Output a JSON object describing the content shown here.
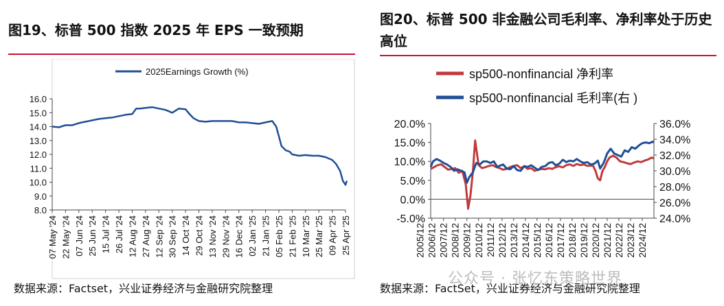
{
  "left": {
    "title": "图19、标普 500 指数 2025 年 EPS 一致预期",
    "source": "数据来源：Factset，兴业证券经济与金融研究院整理"
  },
  "right": {
    "title": "图20、标普 500 非金融公司毛利率、净利率处于历史高位",
    "source": "数据来源：FactSet，兴业证券经济与金融研究院整理"
  },
  "watermark": "公众号 · 张忆东策略世界",
  "colors": {
    "navy": "#1f4e96",
    "red": "#c0393b",
    "rule": "#c8102e"
  },
  "chart_data": [
    {
      "type": "line",
      "title": "",
      "ylim": [
        8.0,
        16.0
      ],
      "yticks": [
        "16.0",
        "15.0",
        "14.0",
        "13.0",
        "12.0",
        "11.0",
        "10.0",
        "9.0",
        "8.0"
      ],
      "xticks": [
        "07 May '24",
        "22 May '24",
        "07 Jun '24",
        "25 Jun '24",
        "15 Jul '24",
        "26 Jul '24",
        "12 Aug '24",
        "27 Aug '24",
        "12 Sep '24",
        "30 Sep '24",
        "14 Oct '24",
        "29 Oct '24",
        "13 Nov '24",
        "29 Nov '24",
        "16 Dec '24",
        "02 Jan '25",
        "21 Jan '25",
        "05 Feb '25",
        "21 Feb '25",
        "10 Mar '25",
        "25 Mar '25",
        "09 Apr '25",
        "25 Apr '25"
      ],
      "grid": false,
      "legend_position": "top",
      "series": [
        {
          "name": "2025Earnings Growth (%)",
          "color": "#1f4e96",
          "x": [
            0,
            0.5,
            1,
            1.5,
            2,
            2.5,
            3,
            3.5,
            4,
            4.5,
            5,
            5.5,
            6,
            6.3,
            6.6,
            7,
            7.5,
            8,
            8.5,
            9,
            9.5,
            10,
            10.3,
            10.6,
            11,
            11.5,
            12,
            12.5,
            13,
            13.5,
            14,
            14.5,
            15,
            15.5,
            16,
            16.5,
            16.8,
            17,
            17.2,
            17.5,
            17.8,
            18,
            18.5,
            19,
            19.5,
            20,
            20.5,
            21,
            21.3,
            21.6,
            21.8,
            22,
            22.1
          ],
          "values": [
            14.0,
            13.95,
            14.1,
            14.1,
            14.25,
            14.35,
            14.45,
            14.55,
            14.6,
            14.65,
            14.75,
            14.85,
            14.9,
            15.3,
            15.3,
            15.35,
            15.4,
            15.3,
            15.2,
            15.0,
            15.3,
            15.25,
            14.9,
            14.6,
            14.4,
            14.35,
            14.4,
            14.4,
            14.4,
            14.4,
            14.3,
            14.3,
            14.25,
            14.2,
            14.3,
            14.4,
            14.0,
            13.3,
            12.6,
            12.3,
            12.2,
            12.0,
            11.9,
            11.95,
            11.9,
            11.9,
            11.8,
            11.6,
            11.3,
            10.8,
            10.1,
            9.8,
            10.1
          ]
        }
      ]
    },
    {
      "type": "line",
      "title": "",
      "ylim": [
        -0.05,
        0.2
      ],
      "y2lim": [
        0.24,
        0.36
      ],
      "yticks": [
        "20.0%",
        "15.0%",
        "10.0%",
        "5.0%",
        "0.0%",
        "-5.0%"
      ],
      "y2ticks": [
        "36.0%",
        "34.0%",
        "32.0%",
        "30.0%",
        "28.0%",
        "26.0%",
        "24.0%"
      ],
      "xticks": [
        "2005/12",
        "2006/12",
        "2007/12",
        "2008/12",
        "2009/12",
        "2010/12",
        "2011/12",
        "2012/12",
        "2013/12",
        "2014/12",
        "2015/12",
        "2016/12",
        "2017/12",
        "2018/12",
        "2019/12",
        "2020/12",
        "2021/12",
        "2022/12",
        "2023/12",
        "2024/12"
      ],
      "grid": false,
      "legend_position": "top-left",
      "series": [
        {
          "name": "sp500-nonfinancial 净利率",
          "color": "#c0393b",
          "axis": "left",
          "x": [
            2005.9,
            2006.2,
            2006.5,
            2006.8,
            2007.1,
            2007.4,
            2007.7,
            2008.0,
            2008.3,
            2008.6,
            2008.9,
            2009.1,
            2009.3,
            2009.5,
            2009.7,
            2010.0,
            2010.3,
            2010.6,
            2010.9,
            2011.2,
            2011.5,
            2011.8,
            2012.1,
            2012.4,
            2012.7,
            2013.0,
            2013.3,
            2013.6,
            2013.9,
            2014.2,
            2014.5,
            2014.8,
            2015.1,
            2015.4,
            2015.7,
            2016.0,
            2016.3,
            2016.6,
            2016.9,
            2017.2,
            2017.5,
            2017.8,
            2018.1,
            2018.4,
            2018.7,
            2019.0,
            2019.3,
            2019.6,
            2019.8,
            2020.0,
            2020.2,
            2020.4,
            2020.6,
            2020.8,
            2021.0,
            2021.2,
            2021.5,
            2021.8,
            2022.1,
            2022.4,
            2022.7,
            2023.0,
            2023.3,
            2023.6,
            2023.9,
            2024.2,
            2024.5,
            2024.8,
            2025.0
          ],
          "values": [
            0.08,
            0.085,
            0.09,
            0.092,
            0.085,
            0.078,
            0.08,
            0.082,
            0.07,
            0.075,
            0.04,
            -0.025,
            0.01,
            0.07,
            0.155,
            0.09,
            0.082,
            0.085,
            0.088,
            0.09,
            0.085,
            0.082,
            0.078,
            0.08,
            0.085,
            0.088,
            0.09,
            0.082,
            0.087,
            0.08,
            0.082,
            0.075,
            0.078,
            0.08,
            0.079,
            0.082,
            0.08,
            0.085,
            0.087,
            0.084,
            0.09,
            0.092,
            0.088,
            0.093,
            0.09,
            0.092,
            0.088,
            0.089,
            0.088,
            0.075,
            0.055,
            0.05,
            0.075,
            0.085,
            0.1,
            0.11,
            0.115,
            0.11,
            0.1,
            0.098,
            0.095,
            0.093,
            0.097,
            0.1,
            0.098,
            0.102,
            0.105,
            0.11,
            0.108
          ]
        },
        {
          "name": "sp500-nonfinancial 毛利率(右 )",
          "color": "#1f4e96",
          "axis": "right",
          "x": [
            2005.9,
            2006.1,
            2006.4,
            2006.7,
            2007.0,
            2007.3,
            2007.6,
            2007.9,
            2008.2,
            2008.5,
            2008.8,
            2009.0,
            2009.2,
            2009.5,
            2009.8,
            2010.1,
            2010.4,
            2010.7,
            2011.0,
            2011.3,
            2011.6,
            2011.9,
            2012.1,
            2012.4,
            2012.7,
            2013.0,
            2013.3,
            2013.6,
            2013.9,
            2014.2,
            2014.5,
            2014.8,
            2015.1,
            2015.4,
            2015.7,
            2016.0,
            2016.3,
            2016.6,
            2016.9,
            2017.2,
            2017.5,
            2017.8,
            2018.1,
            2018.4,
            2018.7,
            2019.0,
            2019.3,
            2019.6,
            2019.9,
            2020.2,
            2020.4,
            2020.7,
            2021.0,
            2021.3,
            2021.6,
            2021.9,
            2022.2,
            2022.5,
            2022.8,
            2023.1,
            2023.4,
            2023.7,
            2024.0,
            2024.3,
            2024.6,
            2024.9,
            2025.0
          ],
          "values": [
            0.305,
            0.312,
            0.315,
            0.313,
            0.31,
            0.308,
            0.305,
            0.3,
            0.302,
            0.3,
            0.298,
            0.285,
            0.292,
            0.298,
            0.31,
            0.308,
            0.312,
            0.312,
            0.31,
            0.312,
            0.305,
            0.307,
            0.308,
            0.303,
            0.302,
            0.306,
            0.301,
            0.3,
            0.306,
            0.305,
            0.307,
            0.304,
            0.301,
            0.305,
            0.306,
            0.31,
            0.311,
            0.307,
            0.309,
            0.314,
            0.311,
            0.313,
            0.312,
            0.315,
            0.312,
            0.31,
            0.311,
            0.308,
            0.309,
            0.313,
            0.303,
            0.31,
            0.322,
            0.328,
            0.322,
            0.32,
            0.318,
            0.326,
            0.324,
            0.33,
            0.328,
            0.332,
            0.335,
            0.336,
            0.335,
            0.337,
            0.336
          ]
        }
      ]
    }
  ]
}
